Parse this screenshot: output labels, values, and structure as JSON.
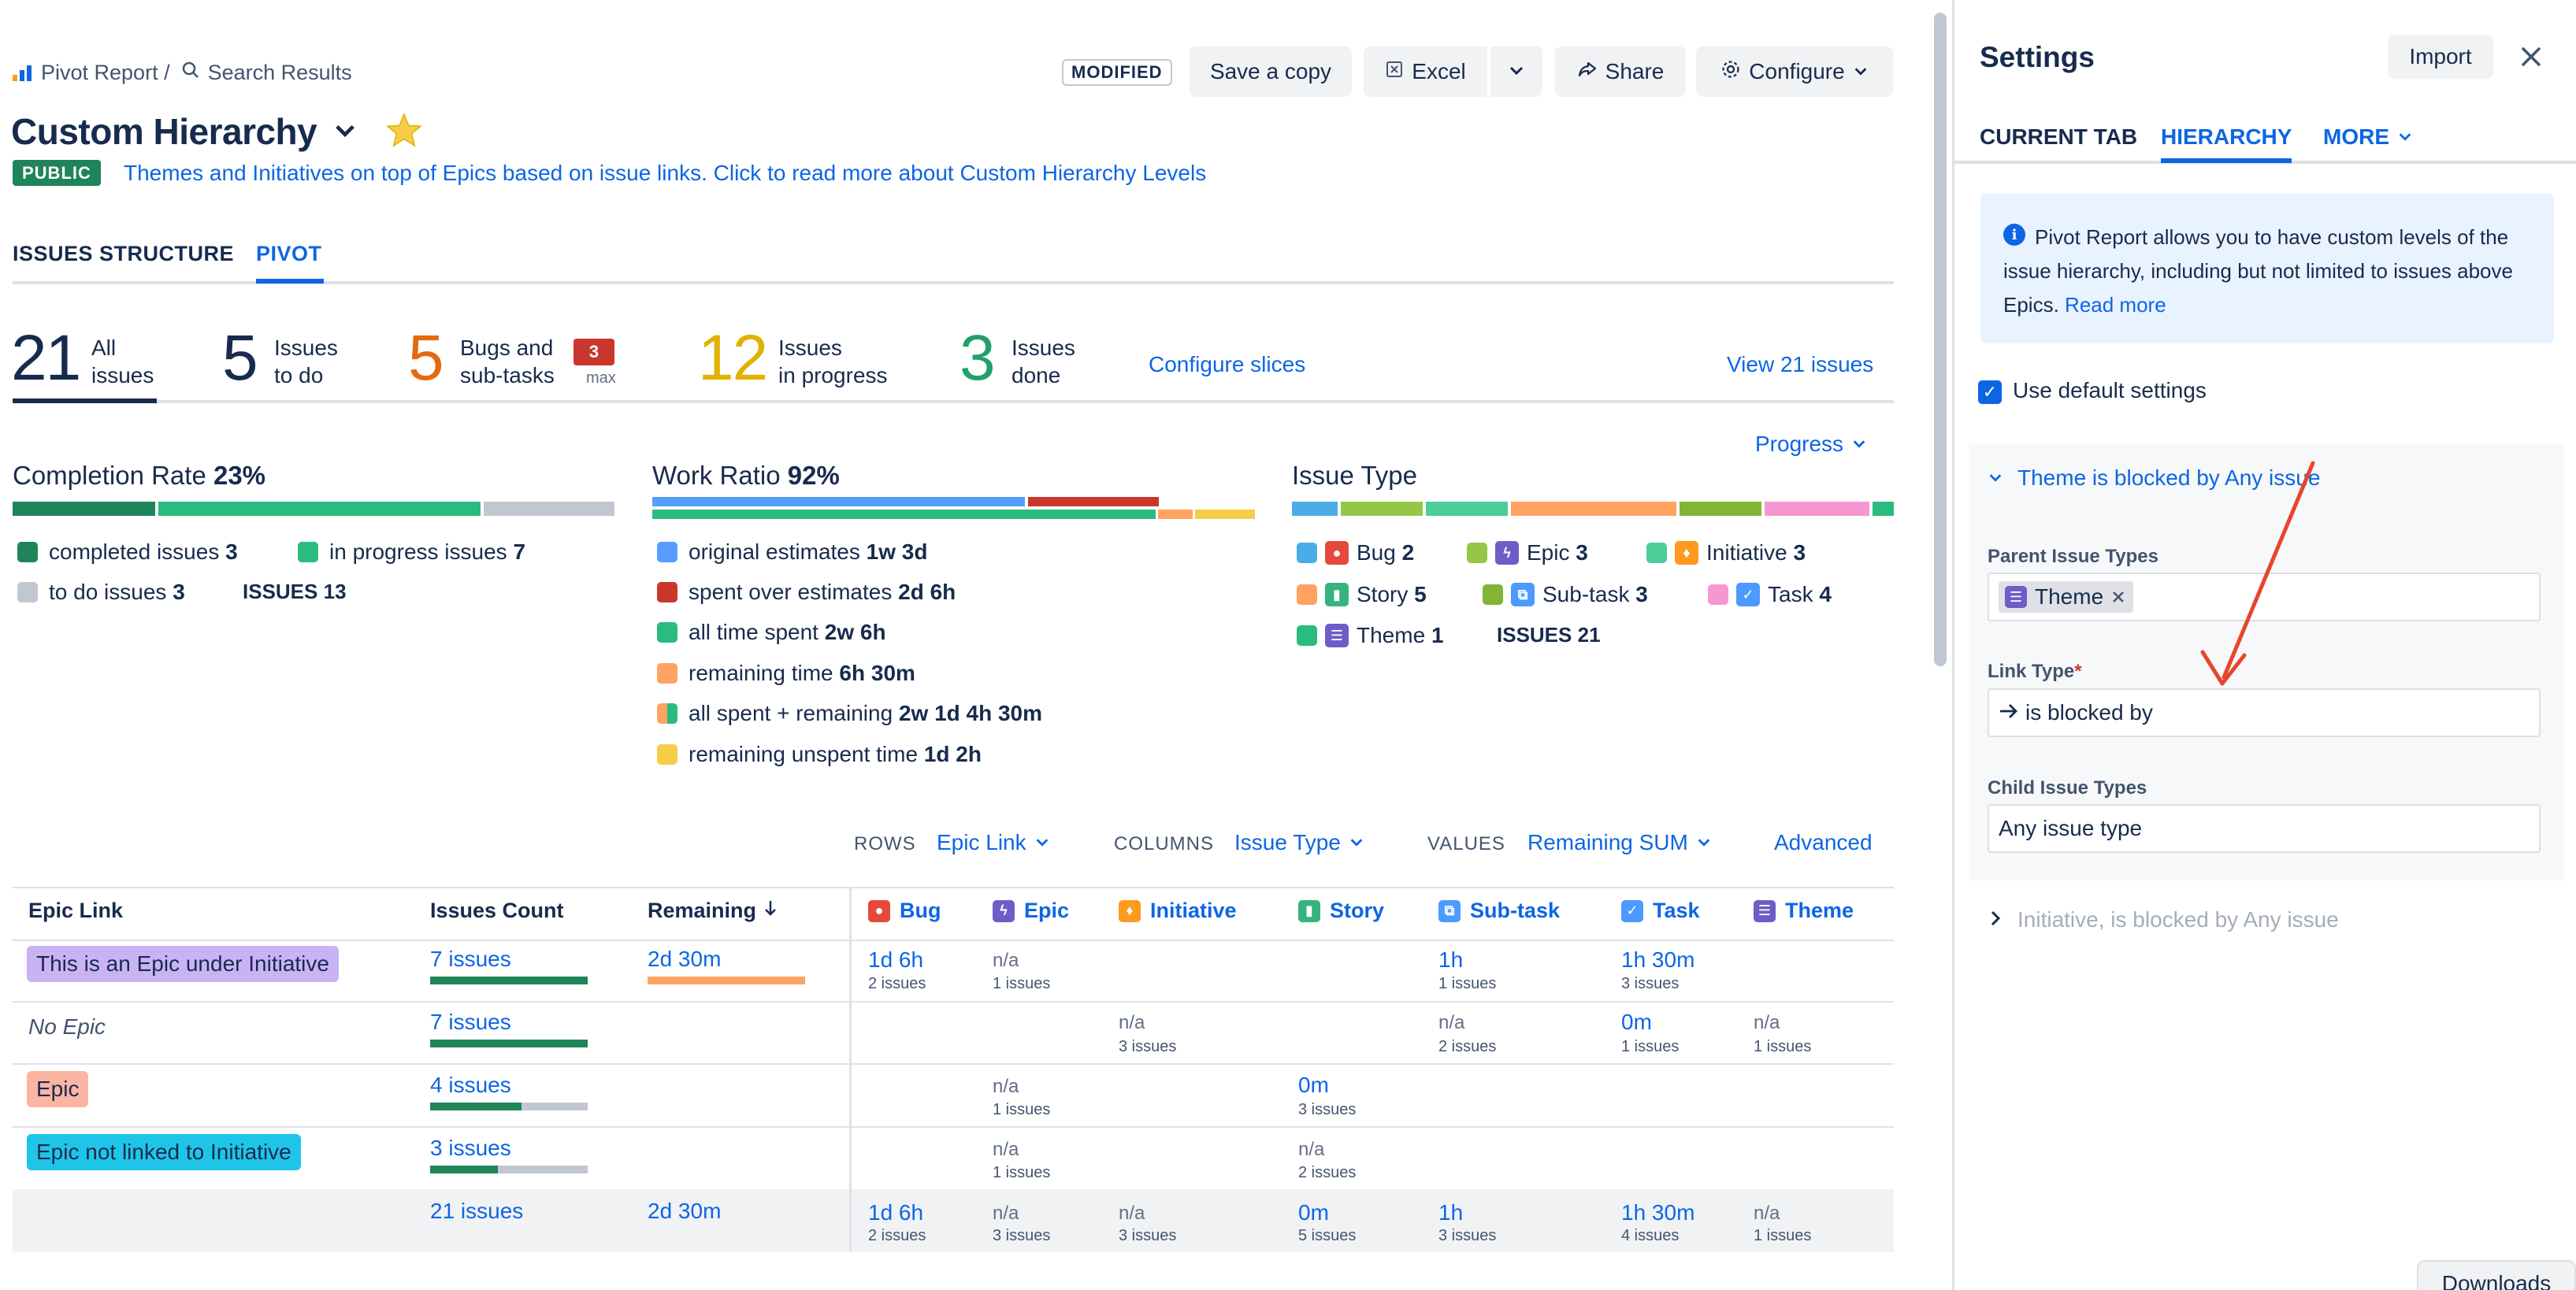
{
  "breadcrumb": {
    "app": "Pivot Report /",
    "search": "Search Results"
  },
  "toolbar": {
    "modified": "MODIFIED",
    "save_copy": "Save a copy",
    "excel": "Excel",
    "share": "Share",
    "configure": "Configure"
  },
  "page": {
    "title": "Custom Hierarchy",
    "badge": "PUBLIC",
    "description": "Themes and Initiatives on top of Epics based on issue links. Click to read more about Custom Hierarchy Levels"
  },
  "tabs": [
    "ISSUES STRUCTURE",
    "PIVOT"
  ],
  "stats": [
    {
      "value": "21",
      "label": "All\nissues",
      "color": "#172b4d"
    },
    {
      "value": "5",
      "label": "Issues\nto do",
      "color": "#172b4d"
    },
    {
      "value": "5",
      "label": "Bugs and\nsub-tasks",
      "color": "#e56910"
    },
    {
      "value": "12",
      "label": "Issues\nin progress",
      "color": "#e2b203"
    },
    {
      "value": "3",
      "label": "Issues\ndone",
      "color": "#22a06b"
    }
  ],
  "stats_max": {
    "badge": "3",
    "label": "max"
  },
  "stats_links": {
    "configure": "Configure slices",
    "view": "View 21 issues"
  },
  "progress_dropdown": "Progress",
  "completion": {
    "title": "Completion Rate",
    "rate": "23%",
    "legend": [
      {
        "label": "completed issues",
        "value": "3",
        "color": "#1f845a"
      },
      {
        "label": "in progress issues",
        "value": "7",
        "color": "#2abb7f"
      },
      {
        "label": "to do issues",
        "value": "3",
        "color": "#c1c7d0"
      },
      {
        "label": "ISSUES",
        "value": "13"
      }
    ]
  },
  "work_ratio": {
    "title": "Work Ratio",
    "rate": "92%",
    "legend": [
      {
        "label": "original estimates",
        "value": "1w 3d",
        "color": "#579dff"
      },
      {
        "label": "spent over estimates",
        "value": "2d 6h",
        "color": "#c9372c"
      },
      {
        "label": "all time spent",
        "value": "2w 6h",
        "color": "#2abb7f"
      },
      {
        "label": "remaining time",
        "value": "6h 30m",
        "color": "#fea362"
      },
      {
        "label": "all spent + remaining",
        "value": "2w 1d 4h 30m",
        "color": "#2abb7f"
      },
      {
        "label": "remaining unspent time",
        "value": "1d 2h",
        "color": "#f5cd47"
      }
    ]
  },
  "issue_type": {
    "title": "Issue Type",
    "legend": [
      {
        "label": "Bug",
        "value": "2",
        "color": "#4bade8",
        "icon": "bug-icon",
        "icon_color": "#e5493a"
      },
      {
        "label": "Epic",
        "value": "3",
        "color": "#94c748",
        "icon": "epic-icon",
        "icon_color": "#6e5dc6"
      },
      {
        "label": "Initiative",
        "value": "3",
        "color": "#4bce97",
        "icon": "initiative-icon",
        "icon_color": "#ff991f"
      },
      {
        "label": "Story",
        "value": "5",
        "color": "#fea362",
        "icon": "story-icon",
        "icon_color": "#36b37e"
      },
      {
        "label": "Sub-task",
        "value": "3",
        "color": "#82b536",
        "icon": "subtask-icon",
        "icon_color": "#4c9aff"
      },
      {
        "label": "Task",
        "value": "4",
        "color": "#f797d2",
        "icon": "task-icon",
        "icon_color": "#4c9aff"
      },
      {
        "label": "Theme",
        "value": "1",
        "color": "#2abb7f",
        "icon": "theme-icon",
        "icon_color": "#6e5dc6"
      },
      {
        "label": "ISSUES",
        "value": "21"
      }
    ]
  },
  "query": {
    "rows_label": "ROWS",
    "rows_value": "Epic Link",
    "columns_label": "COLUMNS",
    "columns_value": "Issue Type",
    "values_label": "VALUES",
    "values_value": "Remaining SUM",
    "advanced": "Advanced"
  },
  "table": {
    "headers": {
      "epic_link": "Epic Link",
      "count": "Issues Count",
      "remaining": "Remaining"
    },
    "type_headers": [
      "Bug",
      "Epic",
      "Initiative",
      "Story",
      "Sub-task",
      "Task",
      "Theme"
    ],
    "rows": [
      {
        "epic": "This is an Epic under Initiative",
        "count": "7 issues",
        "remaining": "2d 30m",
        "bug": "1d 6h",
        "bug_sub": "2 issues",
        "epic_na": "n/a",
        "epic_sub": "1 issues",
        "subtask": "1h",
        "subtask_sub": "1 issues",
        "task": "1h 30m",
        "task_sub": "3 issues"
      },
      {
        "epic": "No Epic",
        "count": "7 issues",
        "initiative_na": "n/a",
        "initiative_sub": "3 issues",
        "subtask_na": "n/a",
        "subtask_sub": "2 issues",
        "task": "0m",
        "task_sub": "1 issues",
        "theme_na": "n/a",
        "theme_sub": "1 issues"
      },
      {
        "epic": "Epic",
        "count": "4 issues",
        "epic_na": "n/a",
        "epic_sub": "1 issues",
        "story": "0m",
        "story_sub": "3 issues"
      },
      {
        "epic": "Epic not linked to Initiative",
        "count": "3 issues",
        "epic_na": "n/a",
        "epic_sub": "1 issues",
        "story_na": "n/a",
        "story_sub": "2 issues"
      }
    ],
    "total": {
      "count": "21 issues",
      "remaining": "2d 30m",
      "bug": "1d 6h",
      "bug_sub": "2 issues",
      "epic_na": "n/a",
      "epic_sub": "3 issues",
      "initiative_na": "n/a",
      "initiative_sub": "3 issues",
      "story": "0m",
      "story_sub": "5 issues",
      "subtask": "1h",
      "subtask_sub": "3 issues",
      "task": "1h 30m",
      "task_sub": "4 issues",
      "theme_na": "n/a",
      "theme_sub": "1 issues"
    }
  },
  "settings": {
    "title": "Settings",
    "import": "Import",
    "tabs": [
      "CURRENT TAB",
      "HIERARCHY",
      "MORE"
    ],
    "info_text": "Pivot Report allows you to have custom levels of the issue hierarchy, including but not limited to issues above Epics.",
    "read_more": "Read more",
    "use_default": "Use default settings",
    "section1": "Theme is blocked by Any issue",
    "parent_label": "Parent Issue Types",
    "parent_tag": "Theme",
    "link_label": "Link Type",
    "link_required": "*",
    "link_value": "is blocked by",
    "child_label": "Child Issue Types",
    "child_value": "Any issue type",
    "section2": "Initiative, is blocked by Any issue"
  },
  "downloads": "Downloads"
}
